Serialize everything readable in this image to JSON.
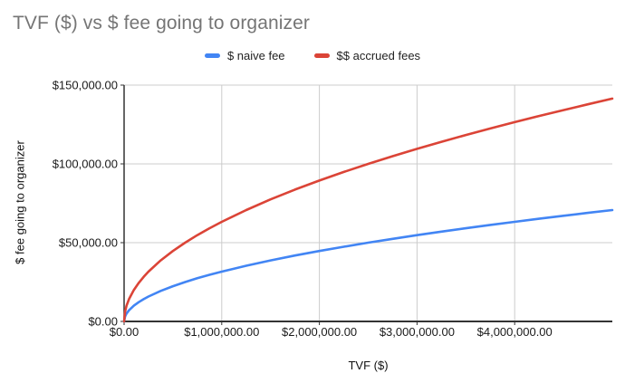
{
  "chart_data": {
    "type": "line",
    "title": "TVF ($) vs $ fee going to organizer",
    "xlabel": "TVF ($)",
    "ylabel": "$ fee going to organizer",
    "xlim": [
      0,
      5000000
    ],
    "ylim": [
      0,
      150000
    ],
    "grid": true,
    "legend_position": "top",
    "x": [
      0,
      10000,
      25000,
      50000,
      100000,
      150000,
      200000,
      250000,
      375000,
      500000,
      625000,
      750000,
      875000,
      1000000,
      1250000,
      1500000,
      1750000,
      2000000,
      2250000,
      2500000,
      2750000,
      3000000,
      3250000,
      3500000,
      3750000,
      4000000,
      4250000,
      4500000,
      4750000,
      5000000
    ],
    "series": [
      {
        "name": "$ naive fee",
        "color": "#4285F4",
        "values": [
          0,
          3162,
          5000,
          7071,
          10000,
          12247,
          14142,
          15811,
          19365,
          22361,
          25000,
          27386,
          29580,
          31623,
          35355,
          38730,
          41833,
          44721,
          47434,
          50000,
          52440,
          54772,
          57009,
          59161,
          61237,
          63246,
          65192,
          67082,
          68920,
          70711
        ]
      },
      {
        "name": "$$ accrued fees",
        "color": "#DB4437",
        "values": [
          0,
          6325,
          10000,
          14142,
          20000,
          24495,
          28284,
          31623,
          38730,
          44721,
          50000,
          54772,
          59161,
          63246,
          70711,
          77460,
          83666,
          89443,
          94868,
          100000,
          104881,
          109545,
          114018,
          118322,
          122474,
          126491,
          130384,
          134164,
          137840,
          141421
        ]
      }
    ],
    "x_ticks": [
      {
        "value": 0,
        "label": "$0.00"
      },
      {
        "value": 1000000,
        "label": "$1,000,000.00"
      },
      {
        "value": 2000000,
        "label": "$2,000,000.00"
      },
      {
        "value": 3000000,
        "label": "$3,000,000.00"
      },
      {
        "value": 4000000,
        "label": "$4,000,000.00"
      }
    ],
    "y_ticks": [
      {
        "value": 0,
        "label": "$0.00"
      },
      {
        "value": 50000,
        "label": "$50,000.00"
      },
      {
        "value": 100000,
        "label": "$100,000.00"
      },
      {
        "value": 150000,
        "label": "$150,000.00"
      }
    ]
  },
  "style": {
    "title_color": "#757575",
    "tick_label_color": "#1a1a1a",
    "axis_title_color": "#111111",
    "gridline_color": "#cccccc",
    "axis_line_color": "#333333",
    "background": "#ffffff"
  }
}
